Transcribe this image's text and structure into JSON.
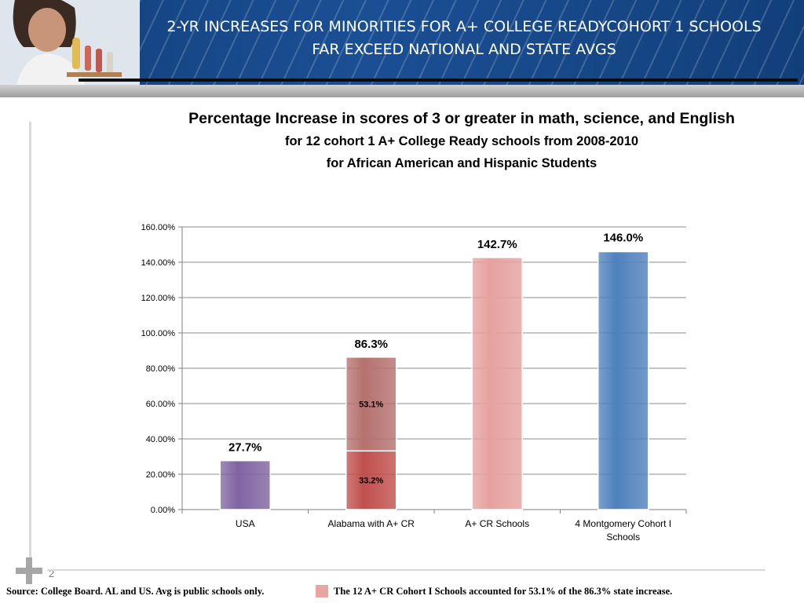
{
  "slide": {
    "title_line1": "2-YR INCREASES FOR MINORITIES FOR A+ COLLEGE READYCOHORT 1 SCHOOLS",
    "title_line2": "FAR EXCEED NATIONAL AND STATE AVGS",
    "page_number": "2",
    "source_text": "Source: College Board.  AL and US. Avg is public schools only.",
    "note_text": "The 12 A+ CR Cohort I Schools accounted for 53.1% of the 86.3%  state increase.",
    "colors": {
      "header": "#1b4f94",
      "usa": "#8064a2",
      "alabama_base": "#c0504d",
      "alabama_increment": "#b5716e",
      "aplus": "#e6a19e",
      "montgomery": "#4f81bd"
    }
  },
  "chart_data": {
    "type": "bar",
    "title": "Percentage Increase in scores of 3 or greater in math, science, and English",
    "subtitle_lines": [
      "for 12 cohort 1 A+ College Ready schools from 2008-2010",
      "for African American and Hispanic Students"
    ],
    "xlabel": "",
    "ylabel": "",
    "ylim": [
      0,
      160
    ],
    "yticks": [
      "0.00%",
      "20.00%",
      "40.00%",
      "60.00%",
      "80.00%",
      "100.00%",
      "120.00%",
      "140.00%",
      "160.00%"
    ],
    "grid": true,
    "legend": "none",
    "categories": [
      "USA",
      "Alabama with A+ CR",
      "A+ CR Schools",
      "4 Montgomery Cohort I Schools"
    ],
    "bars": [
      {
        "category": "USA",
        "segments": [
          {
            "value": 27.7,
            "color": "#8064a2"
          }
        ],
        "total_label": "27.7%"
      },
      {
        "category": "Alabama with A+ CR",
        "segments": [
          {
            "value": 33.2,
            "label": "33.2%",
            "color": "#c0504d"
          },
          {
            "value": 53.1,
            "label": "53.1%",
            "color": "#b5716e"
          }
        ],
        "total_label": "86.3%"
      },
      {
        "category": "A+ CR Schools",
        "segments": [
          {
            "value": 142.7,
            "color": "#e6a19e"
          }
        ],
        "total_label": "142.7%"
      },
      {
        "category": "4 Montgomery Cohort I Schools",
        "segments": [
          {
            "value": 146.0,
            "color": "#4f81bd"
          }
        ],
        "total_label": "146.0%"
      }
    ]
  }
}
